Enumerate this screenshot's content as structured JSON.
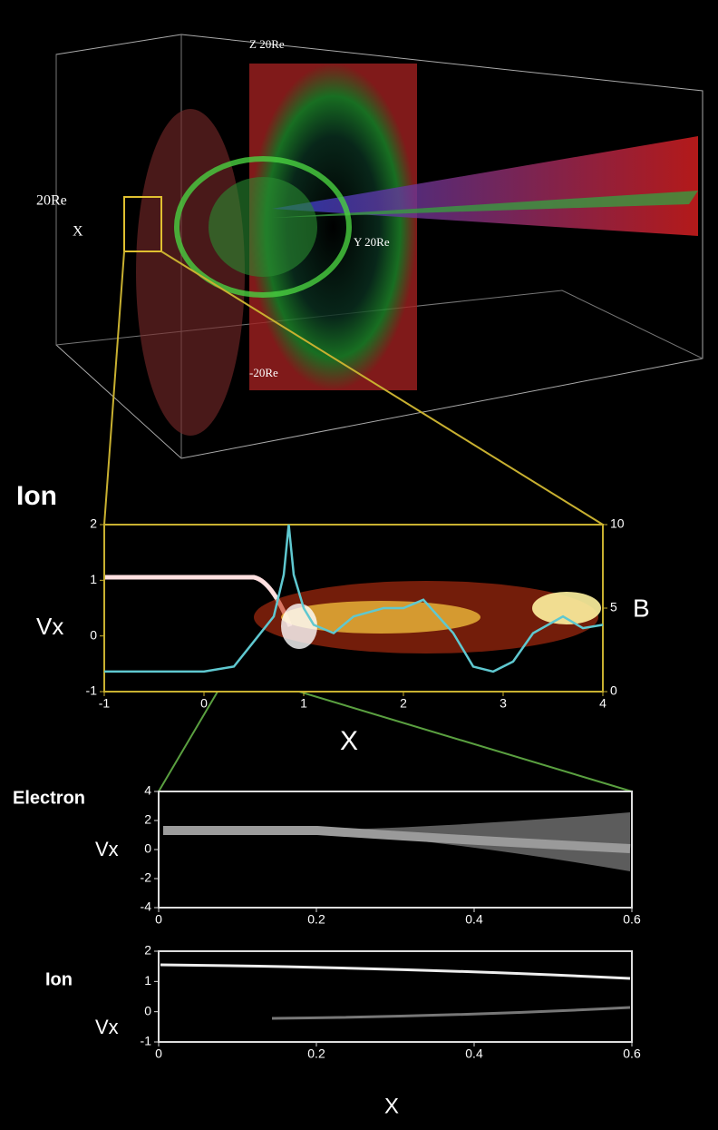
{
  "render": {
    "labels": {
      "z": "Z 20Re",
      "left": "20Re",
      "x": "X",
      "y": "Y 20Re",
      "bottom": "-20Re"
    }
  },
  "chart_data": [
    {
      "type": "line",
      "title": "Ion",
      "ylabel": "Vx",
      "xlabel": "X",
      "y2label": "B",
      "xlim": [
        -1,
        4
      ],
      "ylim": [
        -1,
        2
      ],
      "y2lim": [
        0,
        10
      ],
      "xticks": [
        -1,
        0,
        1,
        2,
        3,
        4
      ],
      "yticks": [
        -1,
        0,
        1,
        2
      ],
      "y2ticks": [
        0,
        5,
        10
      ],
      "series": [
        {
          "color": "#5fc8d0",
          "axis": "y2",
          "x": [
            -1,
            0,
            0.3,
            0.5,
            0.7,
            0.8,
            0.85,
            0.9,
            1.0,
            1.1,
            1.3,
            1.5,
            1.8,
            2.0,
            2.2,
            2.5,
            2.7,
            2.9,
            3.1,
            3.3,
            3.6,
            3.8,
            4.0
          ],
          "values": [
            1.2,
            1.2,
            1.5,
            3,
            4.5,
            7,
            10,
            7,
            5,
            4,
            3.5,
            4.5,
            5,
            5,
            5.5,
            3.5,
            1.5,
            1.2,
            1.8,
            3.5,
            4.5,
            3.8,
            4
          ]
        }
      ]
    },
    {
      "type": "density",
      "title": "Electron",
      "ylabel": "Vx",
      "xlim": [
        0,
        0.6
      ],
      "ylim": [
        -4,
        4
      ],
      "xticks": [
        0,
        0.2,
        0.4,
        0.6
      ],
      "yticks": [
        -4,
        -2,
        0,
        2,
        4
      ]
    },
    {
      "type": "density",
      "title": "Ion",
      "ylabel": "Vx",
      "xlabel": "X",
      "xlim": [
        0,
        0.6
      ],
      "ylim": [
        -1,
        2
      ],
      "xticks": [
        0,
        0.2,
        0.4,
        0.6
      ],
      "yticks": [
        -1,
        0,
        1,
        2
      ]
    }
  ]
}
